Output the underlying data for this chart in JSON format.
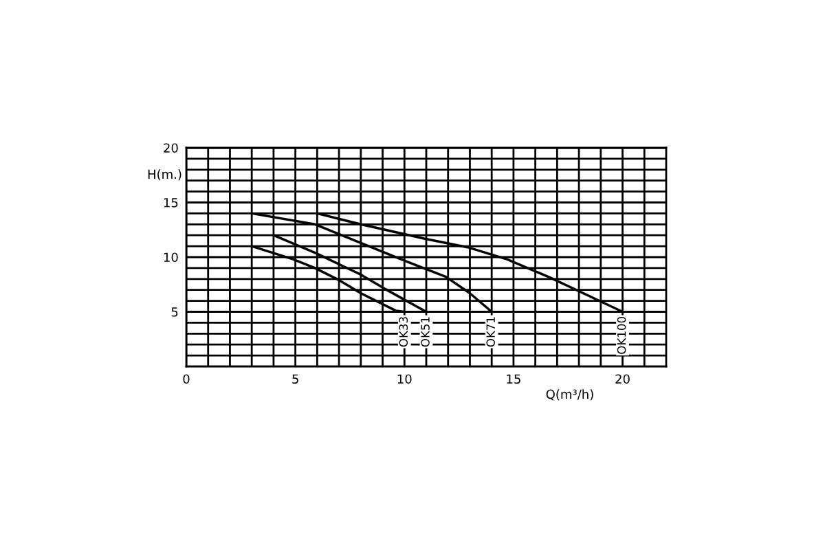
{
  "chart_data": {
    "type": "line",
    "xlabel": "Q(m³/h)",
    "ylabel": "H(m.)",
    "xlim": [
      0,
      22
    ],
    "ylim": [
      0,
      20
    ],
    "grid": true,
    "legend": false,
    "marker": "none",
    "line_style": "solid",
    "xticks": [
      0,
      {
        "value": 1,
        "label": null
      },
      {
        "value": 2,
        "label": null
      },
      {
        "value": 3,
        "label": null
      },
      {
        "value": 4,
        "label": null
      },
      5,
      {
        "value": 6,
        "label": null
      },
      {
        "value": 7,
        "label": null
      },
      {
        "value": 8,
        "label": null
      },
      {
        "value": 9,
        "label": null
      },
      10,
      {
        "value": 11,
        "label": null
      },
      {
        "value": 12,
        "label": null
      },
      {
        "value": 13,
        "label": null
      },
      {
        "value": 14,
        "label": null
      },
      15,
      {
        "value": 16,
        "label": null
      },
      {
        "value": 17,
        "label": null
      },
      {
        "value": 18,
        "label": null
      },
      {
        "value": 19,
        "label": null
      },
      20,
      {
        "value": 21,
        "label": null
      }
    ],
    "yticks": [
      {
        "value": 1,
        "label": null
      },
      {
        "value": 2,
        "label": null
      },
      {
        "value": 3,
        "label": null
      },
      {
        "value": 4,
        "label": null
      },
      5,
      {
        "value": 6,
        "label": null
      },
      {
        "value": 7,
        "label": null
      },
      {
        "value": 8,
        "label": null
      },
      {
        "value": 9,
        "label": null
      },
      10,
      {
        "value": 11,
        "label": null
      },
      {
        "value": 12,
        "label": null
      },
      {
        "value": 13,
        "label": null
      },
      {
        "value": 14,
        "label": null
      },
      15,
      {
        "value": 16,
        "label": null
      },
      {
        "value": 17,
        "label": null
      },
      {
        "value": 18,
        "label": null
      },
      {
        "value": 19,
        "label": null
      },
      20
    ],
    "series": [
      {
        "name": "OK33",
        "color": "#000000",
        "x": [
          3,
          4.9,
          5.9,
          7,
          8,
          9.6,
          10
        ],
        "values": [
          11,
          9.8,
          9,
          7.9,
          6.7,
          5.1,
          5
        ]
      },
      {
        "name": "OK51",
        "color": "#000000",
        "x": [
          4,
          5.9,
          8,
          9.1,
          11
        ],
        "values": [
          12,
          10.4,
          8.4,
          7.1,
          5
        ]
      },
      {
        "name": "OK71",
        "color": "#000000",
        "x": [
          3,
          5.9,
          8,
          10.1,
          11.9,
          13,
          14
        ],
        "values": [
          14,
          13,
          11.3,
          9.6,
          8.2,
          6.7,
          5
        ]
      },
      {
        "name": "OK100",
        "color": "#000000",
        "x": [
          6,
          8,
          10.9,
          12.9,
          14.7,
          16.6,
          18.2,
          20
        ],
        "values": [
          14,
          13,
          11.7,
          10.9,
          9.8,
          8.2,
          6.7,
          5
        ]
      }
    ]
  }
}
